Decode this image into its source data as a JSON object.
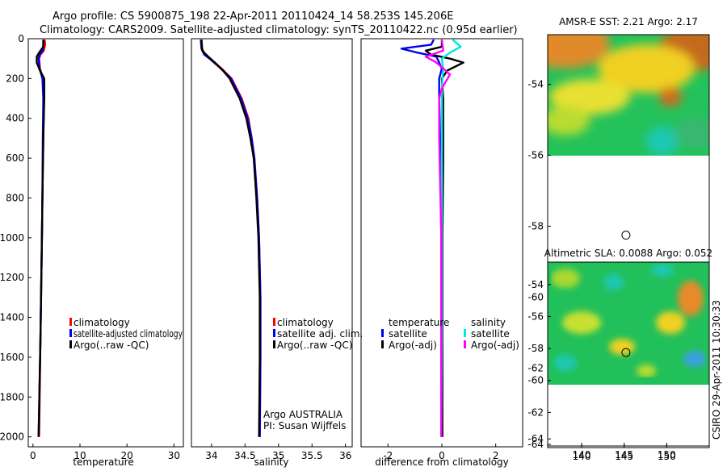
{
  "header": {
    "line1": "Argo profile: CS 5900875_198 22-Apr-2011 20110424_14 58.253S 145.206E",
    "line2": "Climatology: CARS2009. Satellite-adjusted climatology: synTS_20110422.nc (0.95d earlier)"
  },
  "credit": "CSIRO 29-Apr-2011 10:30:33",
  "chart_data": [
    {
      "id": "temperature",
      "type": "line",
      "xlabel": "temperature",
      "xlim": [
        -1,
        32
      ],
      "ylim": [
        0,
        2050
      ],
      "xticks": [
        "0",
        "10",
        "20",
        "30"
      ],
      "xtick_values": [
        0,
        10,
        20,
        30
      ],
      "yticks": [
        "0",
        "200",
        "400",
        "600",
        "800",
        "1000",
        "1200",
        "1400",
        "1600",
        "1800",
        "2000"
      ],
      "ytick_values": [
        0,
        200,
        400,
        600,
        800,
        1000,
        1200,
        1400,
        1600,
        1800,
        2000
      ],
      "legend": [
        "climatology",
        "satellite-adjusted climatology",
        "Argo(..raw -QC)"
      ],
      "series": [
        {
          "name": "climatology",
          "color": "#ff0000",
          "depth": [
            5,
            30,
            60,
            80,
            100,
            150,
            200,
            300,
            500,
            800,
            1000,
            1500,
            2000
          ],
          "values": [
            2.5,
            2.6,
            2.3,
            1.6,
            1.3,
            1.5,
            2.1,
            2.3,
            2.2,
            2.0,
            1.9,
            1.6,
            1.3
          ]
        },
        {
          "name": "satellite-adjusted climatology",
          "color": "#0000ee",
          "depth": [
            5,
            30,
            60,
            80,
            100,
            150,
            200,
            300,
            500,
            800,
            1000,
            1500,
            2000
          ],
          "values": [
            2.2,
            2.2,
            2.1,
            1.4,
            1.2,
            1.4,
            2.0,
            2.2,
            2.1,
            2.0,
            1.9,
            1.6,
            1.2
          ]
        },
        {
          "name": "Argo(..raw -QC)",
          "color": "#000000",
          "depth": [
            5,
            40,
            70,
            90,
            120,
            160,
            200,
            300,
            500,
            800,
            1000,
            1500,
            2000
          ],
          "values": [
            2.2,
            2.2,
            1.3,
            0.8,
            0.8,
            1.5,
            2.4,
            2.4,
            2.2,
            2.0,
            1.9,
            1.6,
            1.2
          ]
        }
      ]
    },
    {
      "id": "salinity",
      "type": "line",
      "xlabel": "salinity",
      "xlim": [
        33.7,
        36.1
      ],
      "ylim": [
        0,
        2050
      ],
      "xticks": [
        "34",
        "34.5",
        "35",
        "35.5",
        "36"
      ],
      "xtick_values": [
        34,
        34.5,
        35,
        35.5,
        36
      ],
      "legend": [
        "climatology",
        "satellite adj. clim.",
        "Argo(..raw -QC)"
      ],
      "annotation": [
        "Argo AUSTRALIA",
        "PI: Susan Wijffels"
      ],
      "series": [
        {
          "name": "climatology",
          "color": "#ff0000",
          "depth": [
            5,
            50,
            80,
            100,
            150,
            200,
            300,
            400,
            500,
            600,
            800,
            1000,
            1300,
            1600,
            2000
          ],
          "values": [
            33.85,
            33.86,
            33.9,
            33.98,
            34.15,
            34.3,
            34.45,
            34.55,
            34.6,
            34.64,
            34.68,
            34.71,
            34.73,
            34.73,
            34.72
          ]
        },
        {
          "name": "satellite adj. clim.",
          "color": "#0000ee",
          "depth": [
            5,
            50,
            80,
            100,
            150,
            200,
            300,
            400,
            500,
            600,
            800,
            1000,
            1300,
            1600,
            2000
          ],
          "values": [
            33.84,
            33.85,
            33.89,
            33.97,
            34.14,
            34.29,
            34.44,
            34.54,
            34.6,
            34.64,
            34.68,
            34.71,
            34.73,
            34.73,
            34.72
          ]
        },
        {
          "name": "Argo(..raw -QC)",
          "color": "#000000",
          "depth": [
            5,
            60,
            90,
            120,
            160,
            200,
            300,
            400,
            500,
            600,
            800,
            1000,
            1300,
            1600,
            2000
          ],
          "values": [
            33.85,
            33.86,
            33.95,
            34.05,
            34.17,
            34.27,
            34.42,
            34.52,
            34.58,
            34.63,
            34.67,
            34.7,
            34.72,
            34.72,
            34.71
          ]
        }
      ]
    },
    {
      "id": "difference",
      "type": "line",
      "xlabel": "difference from climatology",
      "xlim": [
        -3,
        3
      ],
      "ylim": [
        0,
        2050
      ],
      "xticks": [
        "-2",
        "0",
        "2"
      ],
      "xtick_values": [
        -2,
        0,
        2
      ],
      "legend_groups": [
        {
          "title": "temperature",
          "items": [
            "satellite",
            "Argo(-adj)"
          ]
        },
        {
          "title": "salinity",
          "items": [
            "satellite",
            "Argo(-adj)"
          ]
        }
      ],
      "series": [
        {
          "name": "temperature satellite",
          "color": "#0000ee",
          "depth": [
            5,
            30,
            50,
            70,
            90,
            120,
            150,
            200,
            300,
            600,
            1000,
            1500,
            2000
          ],
          "values": [
            -0.3,
            -0.4,
            -1.5,
            -0.9,
            -0.2,
            -0.1,
            0.0,
            -0.1,
            -0.1,
            -0.05,
            -0.02,
            -0.02,
            -0.02
          ]
        },
        {
          "name": "temperature Argo(-adj)",
          "color": "#000000",
          "depth": [
            5,
            40,
            60,
            80,
            100,
            120,
            160,
            200,
            300,
            600,
            1000,
            1500,
            2000
          ],
          "values": [
            0.0,
            0.0,
            -0.6,
            -0.4,
            0.3,
            0.8,
            0.2,
            0.0,
            0.05,
            0.05,
            0.02,
            0.02,
            0.02
          ]
        },
        {
          "name": "salinity satellite",
          "color": "#00e5e5",
          "depth": [
            5,
            40,
            70,
            100,
            150,
            200,
            300,
            600,
            1000,
            1500,
            2000
          ],
          "values": [
            0.4,
            0.7,
            0.3,
            0.0,
            0.05,
            0.02,
            0.0,
            0.0,
            0.0,
            0.0,
            -0.02
          ]
        },
        {
          "name": "salinity Argo(-adj)",
          "color": "#ff00ff",
          "depth": [
            5,
            60,
            90,
            120,
            180,
            250,
            300,
            500,
            800,
            1000,
            1500,
            2000
          ],
          "values": [
            0.0,
            0.05,
            -0.6,
            -0.2,
            0.3,
            0.0,
            -0.1,
            -0.1,
            -0.05,
            -0.02,
            -0.02,
            -0.02
          ]
        }
      ]
    },
    {
      "id": "sst-map",
      "type": "heatmap",
      "title": "AMSR-E SST: 2.21  Argo: 2.17",
      "xlim": [
        136,
        155
      ],
      "ylim": [
        -64.2,
        -52.6
      ],
      "xticks": [
        "140",
        "145",
        "150"
      ],
      "xtick_values": [
        140,
        145,
        150
      ],
      "yticks": [
        "-54",
        "-56",
        "-58",
        "-60",
        "-62",
        "-64"
      ],
      "ytick_values": [
        -54,
        -56,
        -58,
        -60,
        -62,
        -64
      ],
      "data_extent_lat": [
        -60,
        -52.6
      ],
      "marker": {
        "lon": 145.206,
        "lat": -58.253
      }
    },
    {
      "id": "sla-map",
      "type": "heatmap",
      "title": "Altimetric SLA: 0.0088  Argo: 0.052",
      "xlim": [
        136,
        155
      ],
      "ylim": [
        -64.2,
        -52.6
      ],
      "xticks": [
        "140",
        "145",
        "150"
      ],
      "xtick_values": [
        140,
        145,
        150
      ],
      "yticks": [
        "-54",
        "-56",
        "-58",
        "-60",
        "-62",
        "-64"
      ],
      "ytick_values": [
        -54,
        -56,
        -58,
        -60,
        -62,
        -64
      ],
      "data_extent_lat": [
        -60,
        -52.6
      ],
      "marker": {
        "lon": 145.206,
        "lat": -58.253
      }
    }
  ]
}
